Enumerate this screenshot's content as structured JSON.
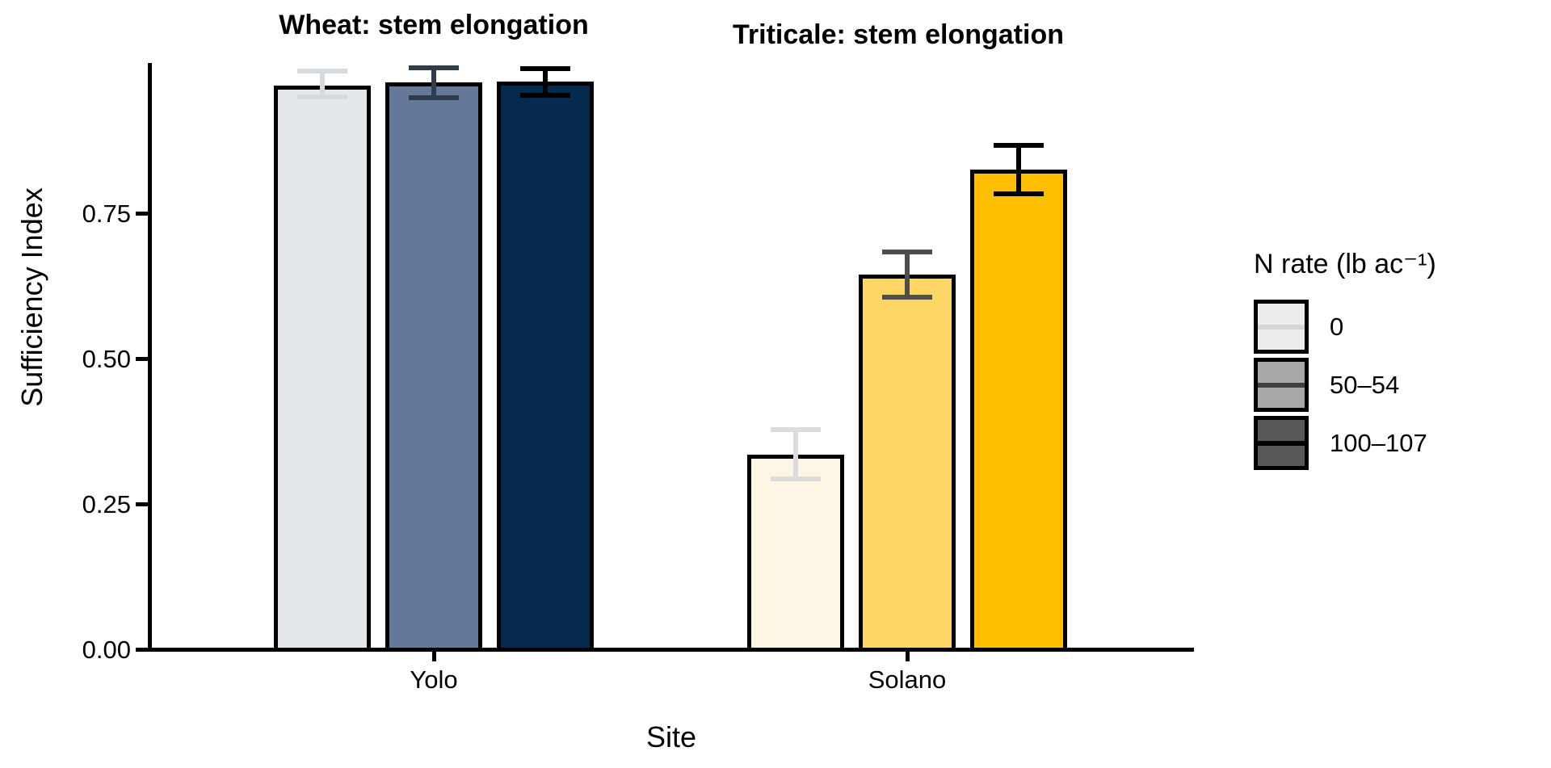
{
  "figure": {
    "y_axis_title": "Sufficiency Index",
    "x_axis_title": "Site",
    "background": "#ffffff",
    "axis_color": "#000000"
  },
  "chart_data": {
    "type": "bar",
    "title": "",
    "xlabel": "Site",
    "ylabel": "Sufficiency Index",
    "ylim": [
      0,
      1.01
    ],
    "grid": "off",
    "y_tick_labels": [
      "0.00",
      "0.25",
      "0.50",
      "0.75"
    ],
    "y_tick_values": [
      0,
      0.25,
      0.5,
      0.75
    ],
    "categories": [
      "Yolo",
      "Solano"
    ],
    "series_levels": [
      "0",
      "50–54",
      "100–107"
    ],
    "facets": [
      {
        "title": "Wheat: stem elongation",
        "site": "Yolo",
        "bars": [
          {
            "n_rate": "0",
            "value": 0.97,
            "err_lo": 0.95,
            "err_hi": 0.995,
            "fill": "#e4e8ec",
            "err_color": "#d5dade"
          },
          {
            "n_rate": "50–54",
            "value": 0.975,
            "err_lo": 0.949,
            "err_hi": 1.0,
            "fill": "#64799a",
            "err_color": "#2e3c4c"
          },
          {
            "n_rate": "100–107",
            "value": 0.977,
            "err_lo": 0.953,
            "err_hi": 0.999,
            "fill": "#06294f",
            "err_color": "#000000"
          }
        ]
      },
      {
        "title": "Triticale: stem elongation",
        "site": "Solano",
        "bars": [
          {
            "n_rate": "0",
            "value": 0.335,
            "err_lo": 0.293,
            "err_hi": 0.378,
            "fill": "#fdf6e4",
            "err_color": "#dcdcdc"
          },
          {
            "n_rate": "50–54",
            "value": 0.644,
            "err_lo": 0.606,
            "err_hi": 0.683,
            "fill": "#fdd666",
            "err_color": "#4e4e4e"
          },
          {
            "n_rate": "100–107",
            "value": 0.825,
            "err_lo": 0.783,
            "err_hi": 0.867,
            "fill": "#febf00",
            "err_color": "#000000"
          }
        ]
      }
    ],
    "legend": {
      "position": "right",
      "title": "N rate (lb ac⁻¹)",
      "entries": [
        {
          "label": "0",
          "fill": "#ededed",
          "line": "#d2d6d9"
        },
        {
          "label": "50–54",
          "fill": "#a9a9a9",
          "line": "#3f3f3f"
        },
        {
          "label": "100–107",
          "fill": "#575757",
          "line": "#000000"
        }
      ]
    }
  }
}
